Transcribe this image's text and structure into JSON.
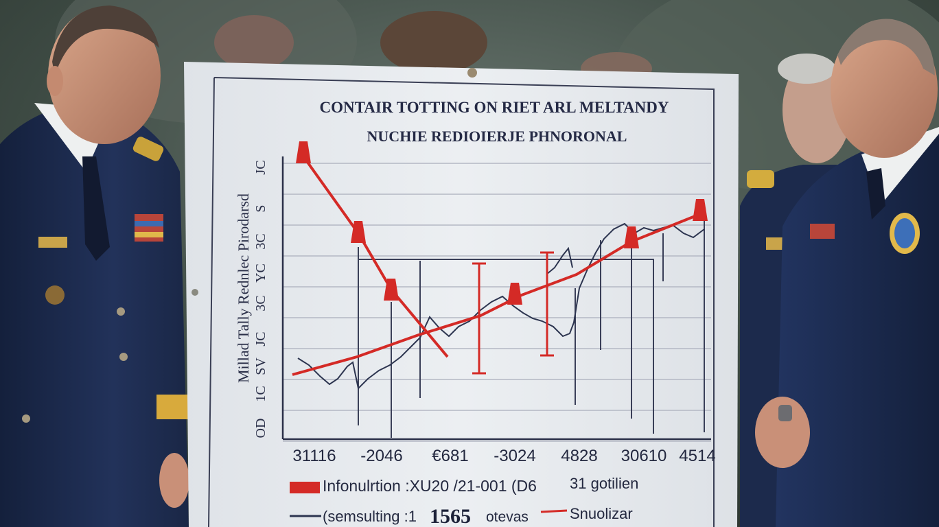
{
  "board": {
    "title_line1": "CONTAIR TOTTING ON RIET ARL MELTANDY",
    "title_line2": "NUCHIE REDIOIERJE PHNORONAL",
    "y_axis_label": "Millad Tally Rednlec Pirodarsd",
    "y_ticks": [
      "OD",
      "1C",
      "SV",
      "JC",
      "3C",
      "YC",
      "3C",
      "S",
      "JC"
    ],
    "x_ticks": [
      "31116",
      "-2046",
      "€681",
      "-3024",
      "4828",
      "30610",
      "4514"
    ],
    "legend": {
      "item1_label": "Infonulrtion :XU20 /21-001 (D6",
      "item1_extra": "31 gotilien",
      "item2_label": "(semsulting :1",
      "item2_value": "1565",
      "item2_extra": "otevas",
      "item3_label": "Snuolizar"
    }
  },
  "colors": {
    "board": "#e7eaee",
    "red_series": "#d42a26",
    "navy_series": "#2d3550",
    "uniform": "#1c2a4c"
  },
  "chart_data": {
    "type": "line",
    "title": "CONTAIR TOTTING ON RIET ARL MELTANDY NUCHIE REDIOIERJE PHNORONAL",
    "ylabel": "Millad Tally Rednlec Pirodarsd",
    "categories": [
      "31116",
      "-2046",
      "€681",
      "-3024",
      "4828",
      "30610",
      "4514"
    ],
    "grid": true
  }
}
